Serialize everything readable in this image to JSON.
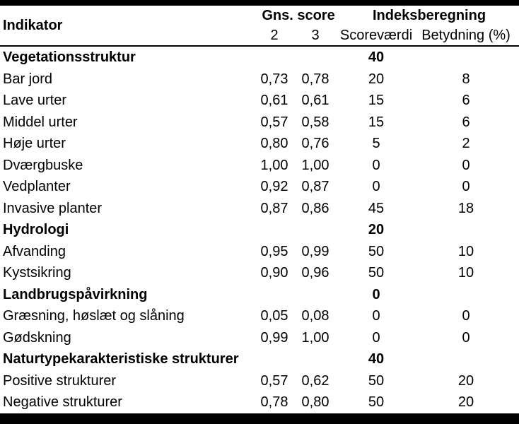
{
  "table": {
    "headers": {
      "indicator": "Indikator",
      "gns_score": "Gns. score",
      "indeksberegning": "Indeksberegning",
      "score_2": "2",
      "score_3": "3",
      "scorevaerdi": "Scoreværdi",
      "betydning": "Betydning (%)"
    },
    "rows": [
      {
        "type": "group",
        "label": "Vegetationsstruktur",
        "score2": "",
        "score3": "",
        "scorevaerdi": "40",
        "betydning": ""
      },
      {
        "type": "data",
        "label": "Bar jord",
        "score2": "0,73",
        "score3": "0,78",
        "scorevaerdi": "20",
        "betydning": "8"
      },
      {
        "type": "data",
        "label": "Lave urter",
        "score2": "0,61",
        "score3": "0,61",
        "scorevaerdi": "15",
        "betydning": "6"
      },
      {
        "type": "data",
        "label": "Middel urter",
        "score2": "0,57",
        "score3": "0,58",
        "scorevaerdi": "15",
        "betydning": "6"
      },
      {
        "type": "data",
        "label": "Høje urter",
        "score2": "0,80",
        "score3": "0,76",
        "scorevaerdi": "5",
        "betydning": "2"
      },
      {
        "type": "data",
        "label": "Dværgbuske",
        "score2": "1,00",
        "score3": "1,00",
        "scorevaerdi": "0",
        "betydning": "0"
      },
      {
        "type": "data",
        "label": "Vedplanter",
        "score2": "0,92",
        "score3": "0,87",
        "scorevaerdi": "0",
        "betydning": "0"
      },
      {
        "type": "data",
        "label": "Invasive planter",
        "score2": "0,87",
        "score3": "0,86",
        "scorevaerdi": "45",
        "betydning": "18"
      },
      {
        "type": "group",
        "label": "Hydrologi",
        "score2": "",
        "score3": "",
        "scorevaerdi": "20",
        "betydning": ""
      },
      {
        "type": "data",
        "label": "Afvanding",
        "score2": "0,95",
        "score3": "0,99",
        "scorevaerdi": "50",
        "betydning": "10"
      },
      {
        "type": "data",
        "label": "Kystsikring",
        "score2": "0,90",
        "score3": "0,96",
        "scorevaerdi": "50",
        "betydning": "10"
      },
      {
        "type": "group",
        "label": "Landbrugspåvirkning",
        "score2": "",
        "score3": "",
        "scorevaerdi": "0",
        "betydning": ""
      },
      {
        "type": "data",
        "label": "Græsning, høslæt og slåning",
        "score2": "0,05",
        "score3": "0,08",
        "scorevaerdi": "0",
        "betydning": "0"
      },
      {
        "type": "data",
        "label": "Gødskning",
        "score2": "0,99",
        "score3": "1,00",
        "scorevaerdi": "0",
        "betydning": "0"
      },
      {
        "type": "group",
        "label": "Naturtypekarakteristiske strukturer",
        "score2": "",
        "score3": "",
        "scorevaerdi": "40",
        "betydning": ""
      },
      {
        "type": "data",
        "label": "Positive strukturer",
        "score2": "0,57",
        "score3": "0,62",
        "scorevaerdi": "50",
        "betydning": "20"
      },
      {
        "type": "data",
        "label": "Negative strukturer",
        "score2": "0,78",
        "score3": "0,80",
        "scorevaerdi": "50",
        "betydning": "20"
      }
    ]
  }
}
